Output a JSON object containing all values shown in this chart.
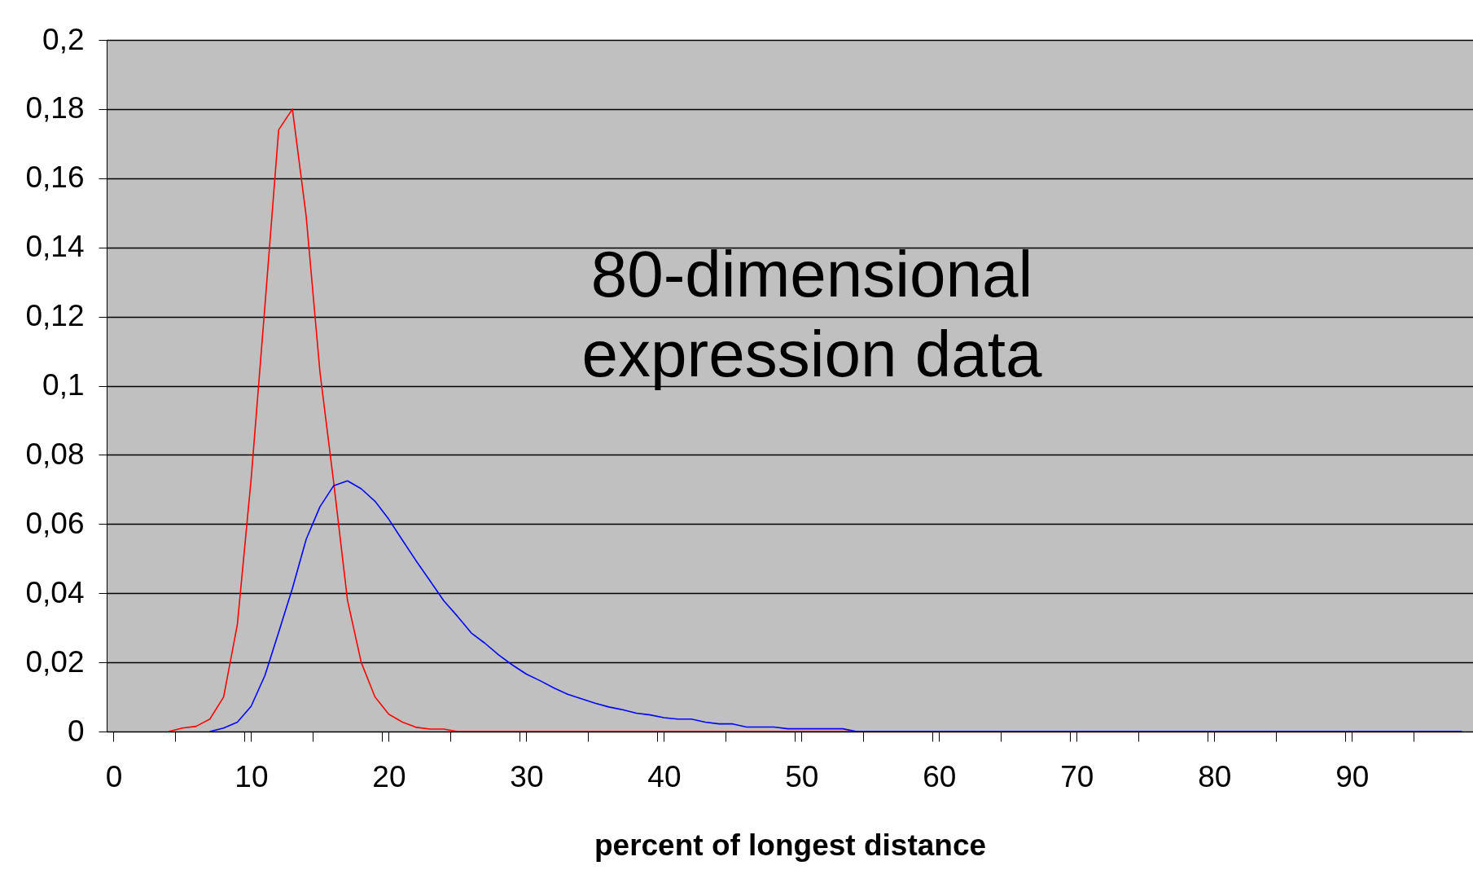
{
  "chart_data": {
    "type": "line",
    "xlabel": "percent of longest distance",
    "annotations": [
      "80-dimensional\nexpression data"
    ],
    "x": [
      4,
      5,
      6,
      7,
      8,
      9,
      10,
      11,
      12,
      13,
      14,
      15,
      16,
      17,
      18,
      19,
      20,
      21,
      22,
      23,
      24,
      25,
      26,
      27,
      28,
      29,
      30,
      31,
      32,
      33,
      34,
      35,
      36,
      37,
      38,
      39,
      40,
      41,
      42,
      43,
      44,
      45,
      46,
      47,
      48,
      49,
      50,
      51,
      52,
      53,
      54,
      55,
      56,
      57,
      58,
      59,
      60,
      61,
      62,
      63,
      64,
      65,
      66,
      67,
      68,
      69,
      70,
      71,
      72,
      73,
      74,
      75,
      76,
      77,
      78,
      79,
      80,
      81,
      82,
      83,
      84,
      85,
      86,
      87,
      88,
      89,
      90,
      91,
      92,
      93,
      94,
      95,
      96,
      97,
      98
    ],
    "series": [
      {
        "color": "#ff0000",
        "values": [
          0,
          0.001,
          0.0015,
          0.0036,
          0.01,
          0.031,
          0.073,
          0.123,
          0.174,
          0.18,
          0.149,
          0.104,
          0.072,
          0.038,
          0.02,
          0.01,
          0.005,
          0.0027,
          0.0012,
          0.0007,
          0.0007,
          0,
          0,
          0,
          0,
          0,
          0,
          0,
          0,
          0,
          0,
          0,
          0,
          0,
          0,
          0,
          0,
          0,
          0,
          0,
          0,
          0,
          0,
          0,
          0,
          0,
          0,
          0,
          0,
          0,
          0,
          null,
          null,
          null,
          null,
          null,
          null,
          null,
          null,
          null,
          null,
          null,
          null,
          null,
          null,
          null,
          null,
          null,
          null,
          null,
          null,
          null,
          null,
          null,
          null,
          null,
          null,
          null,
          null,
          null,
          null,
          null,
          null,
          null,
          null,
          null,
          null,
          null,
          null,
          null,
          null,
          null,
          null,
          null,
          null
        ]
      },
      {
        "color": "#0000ff",
        "values": [
          null,
          null,
          null,
          0,
          0.001,
          0.0027,
          0.0073,
          0.0162,
          0.0287,
          0.0414,
          0.0556,
          0.065,
          0.0711,
          0.0725,
          0.0702,
          0.0666,
          0.0614,
          0.0553,
          0.0493,
          0.0436,
          0.0378,
          0.0333,
          0.0285,
          0.0255,
          0.0221,
          0.0192,
          0.0166,
          0.0147,
          0.0126,
          0.0108,
          0.0095,
          0.0082,
          0.0071,
          0.0063,
          0.0053,
          0.0048,
          0.004,
          0.0036,
          0.0036,
          0.0027,
          0.0022,
          0.0022,
          0.0013,
          0.0013,
          0.0013,
          0.0008,
          0.0008,
          0.0008,
          0.0008,
          0.0008,
          0,
          0,
          0,
          0,
          0,
          0,
          0,
          0,
          0,
          0,
          0,
          0,
          0,
          0,
          0,
          0,
          0,
          0,
          0,
          0,
          0,
          0,
          0,
          0,
          0,
          0,
          0,
          0,
          0,
          0,
          0,
          0,
          0,
          0,
          0,
          0,
          0,
          0,
          0,
          0,
          0,
          0,
          0,
          0,
          0
        ]
      }
    ],
    "xlim": [
      -0.5,
      98.8
    ],
    "xticks": [
      0,
      {
        "value": 4.5,
        "label": null
      },
      {
        "value": 9.5,
        "label": null
      },
      10,
      {
        "value": 14.5,
        "label": null
      },
      {
        "value": 19.5,
        "label": null
      },
      20,
      {
        "value": 24.5,
        "label": null
      },
      {
        "value": 29.5,
        "label": null
      },
      30,
      {
        "value": 34.5,
        "label": null
      },
      {
        "value": 39.5,
        "label": null
      },
      40,
      {
        "value": 44.5,
        "label": null
      },
      {
        "value": 49.5,
        "label": null
      },
      50,
      {
        "value": 54.5,
        "label": null
      },
      {
        "value": 59.5,
        "label": null
      },
      60,
      {
        "value": 64.5,
        "label": null
      },
      {
        "value": 69.5,
        "label": null
      },
      70,
      {
        "value": 74.5,
        "label": null
      },
      {
        "value": 79.5,
        "label": null
      },
      80,
      {
        "value": 84.5,
        "label": null
      },
      {
        "value": 89.5,
        "label": null
      },
      90,
      {
        "value": 94.5,
        "label": null
      }
    ],
    "ylim": [
      0,
      0.2
    ],
    "yticks": [
      0,
      {
        "value": 0.02,
        "label": "0,02"
      },
      {
        "value": 0.04,
        "label": "0,04"
      },
      {
        "value": 0.06,
        "label": "0,06"
      },
      {
        "value": 0.08,
        "label": "0,08"
      },
      {
        "value": 0.1,
        "label": "0,1"
      },
      {
        "value": 0.12,
        "label": "0,12"
      },
      {
        "value": 0.14,
        "label": "0,14"
      },
      {
        "value": 0.16,
        "label": "0,16"
      },
      {
        "value": 0.18,
        "label": "0,18"
      },
      {
        "value": 0.2,
        "label": "0,2"
      }
    ],
    "grid": "y"
  }
}
